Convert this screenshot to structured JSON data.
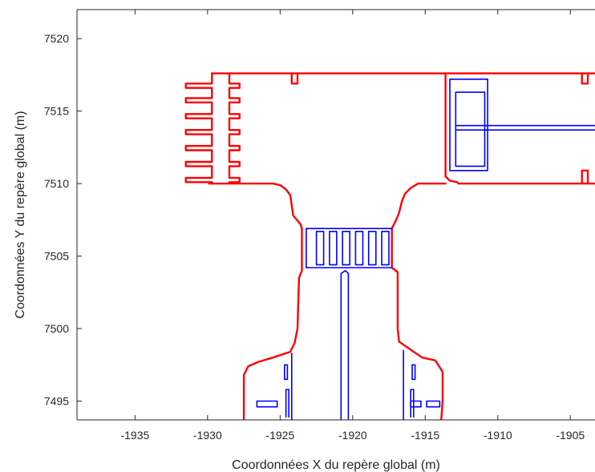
{
  "chart_data": {
    "type": "line",
    "title": "",
    "xlabel": "Coordonnées X du repère global (m)",
    "ylabel": "Coordonnées Y du repère global (m)",
    "xlim": [
      -1939,
      -1903.3
    ],
    "ylim": [
      7493.7,
      7522
    ],
    "xticks": [
      -1935,
      -1930,
      -1925,
      -1920,
      -1915,
      -1910,
      -1905
    ],
    "yticks": [
      7495,
      7500,
      7505,
      7510,
      7515,
      7520
    ],
    "grid": false,
    "legend": "none",
    "colors": {
      "red": "#ff0000",
      "blue": "#0000ff"
    },
    "series": [
      {
        "color": "#ff0000",
        "style": "solid",
        "paths": [
          [
            [
              -1929.7,
              7517.6
            ],
            [
              -1903.3,
              7517.6
            ]
          ],
          [
            [
              -1929.7,
              7517.6
            ],
            [
              -1929.7,
              7516.9
            ],
            [
              -1931.5,
              7516.9
            ],
            [
              -1931.5,
              7516.6
            ],
            [
              -1929.7,
              7516.6
            ],
            [
              -1929.7,
              7515.9
            ],
            [
              -1931.5,
              7515.9
            ],
            [
              -1931.5,
              7515.6
            ],
            [
              -1929.7,
              7515.6
            ],
            [
              -1929.7,
              7514.8
            ],
            [
              -1931.5,
              7514.8
            ],
            [
              -1931.5,
              7514.5
            ],
            [
              -1929.7,
              7514.5
            ],
            [
              -1929.7,
              7513.7
            ],
            [
              -1931.5,
              7513.7
            ],
            [
              -1931.5,
              7513.4
            ],
            [
              -1929.7,
              7513.4
            ],
            [
              -1929.7,
              7512.6
            ],
            [
              -1931.5,
              7512.6
            ],
            [
              -1931.5,
              7512.3
            ],
            [
              -1929.7,
              7512.3
            ],
            [
              -1929.7,
              7511.5
            ],
            [
              -1931.5,
              7511.5
            ],
            [
              -1931.5,
              7511.2
            ],
            [
              -1929.7,
              7511.2
            ],
            [
              -1929.7,
              7510.4
            ],
            [
              -1931.5,
              7510.4
            ],
            [
              -1931.5,
              7510.1
            ],
            [
              -1929.7,
              7510.1
            ],
            [
              -1929.7,
              7510.0
            ]
          ],
          [
            [
              -1928.5,
              7517.6
            ],
            [
              -1928.5,
              7516.9
            ],
            [
              -1927.8,
              7516.9
            ],
            [
              -1927.8,
              7516.6
            ],
            [
              -1928.5,
              7516.6
            ],
            [
              -1928.5,
              7515.9
            ],
            [
              -1927.8,
              7515.9
            ],
            [
              -1927.8,
              7515.6
            ],
            [
              -1928.5,
              7515.6
            ],
            [
              -1928.5,
              7514.8
            ],
            [
              -1927.8,
              7514.8
            ],
            [
              -1927.8,
              7514.5
            ],
            [
              -1928.5,
              7514.5
            ],
            [
              -1928.5,
              7513.7
            ],
            [
              -1927.8,
              7513.7
            ],
            [
              -1927.8,
              7513.4
            ],
            [
              -1928.5,
              7513.4
            ],
            [
              -1928.5,
              7512.6
            ],
            [
              -1927.8,
              7512.6
            ],
            [
              -1927.8,
              7512.3
            ],
            [
              -1928.5,
              7512.3
            ],
            [
              -1928.5,
              7511.5
            ],
            [
              -1927.8,
              7511.5
            ],
            [
              -1927.8,
              7511.2
            ],
            [
              -1928.5,
              7511.2
            ],
            [
              -1928.5,
              7510.4
            ],
            [
              -1927.8,
              7510.4
            ],
            [
              -1927.8,
              7510.1
            ],
            [
              -1928.5,
              7510.1
            ],
            [
              -1928.5,
              7510.0
            ]
          ],
          [
            [
              -1929.9,
              7510.0
            ],
            [
              -1925.5,
              7510.0
            ],
            [
              -1925.0,
              7509.9
            ],
            [
              -1924.6,
              7509.6
            ],
            [
              -1924.3,
              7509.2
            ],
            [
              -1924.2,
              7508.5
            ],
            [
              -1924.1,
              7507.8
            ],
            [
              -1923.6,
              7507.2
            ],
            [
              -1923.5,
              7506.9
            ]
          ],
          [
            [
              -1923.5,
              7506.9
            ],
            [
              -1923.5,
              7504.0
            ],
            [
              -1923.7,
              7503.5
            ],
            [
              -1923.8,
              7500.0
            ],
            [
              -1924.0,
              7499.0
            ],
            [
              -1924.3,
              7498.4
            ],
            [
              -1925.5,
              7498.0
            ],
            [
              -1926.5,
              7497.7
            ],
            [
              -1927.2,
              7497.4
            ],
            [
              -1927.5,
              7496.8
            ],
            [
              -1927.5,
              7493.7
            ]
          ],
          [
            [
              -1924.2,
              7517.6
            ],
            [
              -1924.2,
              7516.9
            ],
            [
              -1923.8,
              7516.9
            ],
            [
              -1923.8,
              7517.6
            ]
          ],
          [
            [
              -1913.6,
              7517.6
            ],
            [
              -1913.6,
              7510.5
            ],
            [
              -1913.3,
              7510.2
            ],
            [
              -1912.8,
              7510.1
            ],
            [
              -1912.7,
              7510.0
            ],
            [
              -1903.3,
              7510.0
            ]
          ],
          [
            [
              -1913.6,
              7510.0
            ],
            [
              -1915.5,
              7510.0
            ],
            [
              -1916.0,
              7509.7
            ],
            [
              -1916.4,
              7509.3
            ],
            [
              -1916.6,
              7508.8
            ],
            [
              -1916.8,
              7508.0
            ],
            [
              -1917.0,
              7507.5
            ],
            [
              -1917.3,
              7506.9
            ]
          ],
          [
            [
              -1917.3,
              7506.9
            ],
            [
              -1917.3,
              7504.2
            ],
            [
              -1916.9,
              7503.9
            ],
            [
              -1916.9,
              7500.0
            ],
            [
              -1916.8,
              7499.1
            ],
            [
              -1915.8,
              7498.4
            ],
            [
              -1915.2,
              7498.0
            ],
            [
              -1914.3,
              7497.8
            ],
            [
              -1913.8,
              7497.0
            ],
            [
              -1913.8,
              7495.0
            ],
            [
              -1913.9,
              7493.7
            ]
          ],
          [
            [
              -1904.2,
              7517.6
            ],
            [
              -1904.2,
              7516.9
            ],
            [
              -1903.8,
              7516.9
            ],
            [
              -1903.8,
              7517.6
            ]
          ],
          [
            [
              -1904.2,
              7510.0
            ],
            [
              -1904.2,
              7510.9
            ],
            [
              -1903.8,
              7510.9
            ],
            [
              -1903.8,
              7510.0
            ]
          ]
        ]
      },
      {
        "color": "#0000ff",
        "style": "solid",
        "paths": [
          [
            [
              -1923.2,
              7506.9
            ],
            [
              -1917.3,
              7506.9
            ]
          ],
          [
            [
              -1923.2,
              7504.2
            ],
            [
              -1917.3,
              7504.2
            ]
          ],
          [
            [
              -1923.2,
              7506.9
            ],
            [
              -1923.2,
              7504.2
            ]
          ],
          [
            [
              -1922.5,
              7506.7
            ],
            [
              -1922.0,
              7506.7
            ],
            [
              -1922.0,
              7504.4
            ],
            [
              -1922.5,
              7504.4
            ],
            [
              -1922.5,
              7506.7
            ]
          ],
          [
            [
              -1921.6,
              7506.7
            ],
            [
              -1921.1,
              7506.7
            ],
            [
              -1921.1,
              7504.4
            ],
            [
              -1921.6,
              7504.4
            ],
            [
              -1921.6,
              7506.7
            ]
          ],
          [
            [
              -1920.7,
              7506.7
            ],
            [
              -1920.2,
              7506.7
            ],
            [
              -1920.2,
              7504.4
            ],
            [
              -1920.7,
              7504.4
            ],
            [
              -1920.7,
              7506.7
            ]
          ],
          [
            [
              -1919.8,
              7506.7
            ],
            [
              -1919.3,
              7506.7
            ],
            [
              -1919.3,
              7504.4
            ],
            [
              -1919.8,
              7504.4
            ],
            [
              -1919.8,
              7506.7
            ]
          ],
          [
            [
              -1918.9,
              7506.7
            ],
            [
              -1918.4,
              7506.7
            ],
            [
              -1918.4,
              7504.4
            ],
            [
              -1918.9,
              7504.4
            ],
            [
              -1918.9,
              7506.7
            ]
          ],
          [
            [
              -1918.0,
              7506.7
            ],
            [
              -1917.5,
              7506.7
            ],
            [
              -1917.5,
              7504.4
            ],
            [
              -1918.0,
              7504.4
            ],
            [
              -1918.0,
              7506.7
            ]
          ],
          [
            [
              -1920.8,
              7493.7
            ],
            [
              -1920.8,
              7503.8
            ],
            [
              -1920.5,
              7504.0
            ],
            [
              -1920.3,
              7503.8
            ],
            [
              -1920.3,
              7493.7
            ]
          ],
          [
            [
              -1912.9,
              7516.3
            ],
            [
              -1910.9,
              7516.3
            ],
            [
              -1910.9,
              7511.2
            ],
            [
              -1912.9,
              7511.2
            ],
            [
              -1912.9,
              7516.3
            ]
          ],
          [
            [
              -1912.9,
              7514.0
            ],
            [
              -1903.3,
              7514.0
            ]
          ],
          [
            [
              -1912.9,
              7513.7
            ],
            [
              -1903.3,
              7513.7
            ]
          ],
          [
            [
              -1913.3,
              7517.2
            ],
            [
              -1910.7,
              7517.2
            ],
            [
              -1910.7,
              7510.9
            ],
            [
              -1913.3,
              7510.9
            ],
            [
              -1913.3,
              7517.2
            ]
          ],
          [
            [
              -1924.2,
              7498.3
            ],
            [
              -1924.2,
              7493.7
            ]
          ],
          [
            [
              -1924.7,
              7497.5
            ],
            [
              -1924.5,
              7497.5
            ],
            [
              -1924.5,
              7496.5
            ],
            [
              -1924.7,
              7496.5
            ],
            [
              -1924.7,
              7497.5
            ]
          ],
          [
            [
              -1926.6,
              7495.0
            ],
            [
              -1925.2,
              7495.0
            ],
            [
              -1925.2,
              7494.6
            ],
            [
              -1926.6,
              7494.6
            ],
            [
              -1926.6,
              7495.0
            ]
          ],
          [
            [
              -1924.6,
              7493.9
            ],
            [
              -1924.6,
              7495.8
            ],
            [
              -1924.4,
              7495.8
            ],
            [
              -1924.4,
              7493.9
            ]
          ],
          [
            [
              -1916.5,
              7498.5
            ],
            [
              -1916.5,
              7493.7
            ]
          ],
          [
            [
              -1915.9,
              7497.5
            ],
            [
              -1915.7,
              7497.5
            ],
            [
              -1915.7,
              7496.5
            ],
            [
              -1915.9,
              7496.5
            ],
            [
              -1915.9,
              7497.5
            ]
          ],
          [
            [
              -1914.9,
              7495.0
            ],
            [
              -1914.0,
              7495.0
            ],
            [
              -1914.0,
              7494.6
            ],
            [
              -1914.9,
              7494.6
            ],
            [
              -1914.9,
              7495.0
            ]
          ],
          [
            [
              -1916.0,
              7495.0
            ],
            [
              -1915.3,
              7495.0
            ],
            [
              -1915.3,
              7494.6
            ],
            [
              -1916.0,
              7494.6
            ],
            [
              -1916.0,
              7495.0
            ]
          ],
          [
            [
              -1916.0,
              7493.9
            ],
            [
              -1916.0,
              7495.8
            ],
            [
              -1915.8,
              7495.8
            ],
            [
              -1915.8,
              7493.9
            ]
          ]
        ]
      }
    ]
  }
}
